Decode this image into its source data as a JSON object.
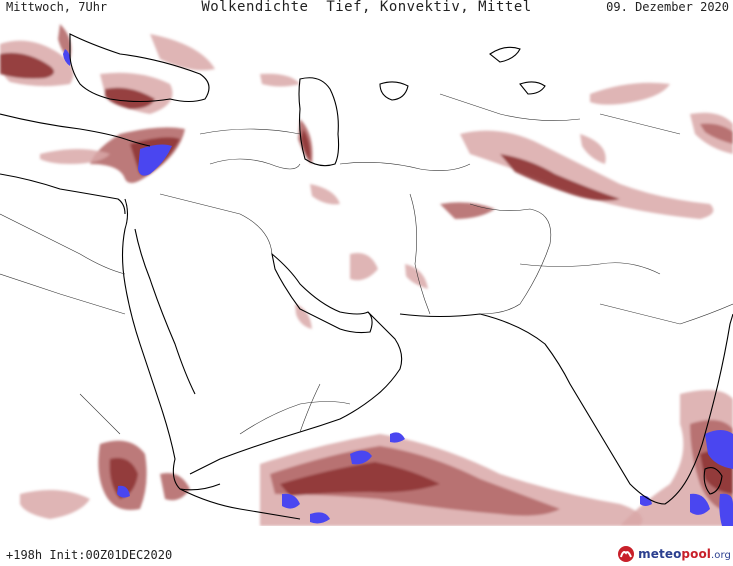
{
  "header": {
    "left": "Mittwoch, 7Uhr",
    "title": "Wolkendichte  Tief, Konvektiv, Mittel",
    "date": "09. Dezember 2020"
  },
  "footer": {
    "run_info": "+198h Init:00Z01DEC2020"
  },
  "brand": {
    "part1": "meteo",
    "part2": "pool",
    "part3": ".org",
    "icon": "meteopool-logo-icon"
  },
  "colors": {
    "cloud_dark": "#8f3535",
    "cloud_mid": "#b56b6b",
    "cloud_light": "#d9a8a8",
    "cloud_max": "#4a46f0",
    "coastline": "#000000",
    "border": "#333333",
    "background": "#ffffff"
  }
}
